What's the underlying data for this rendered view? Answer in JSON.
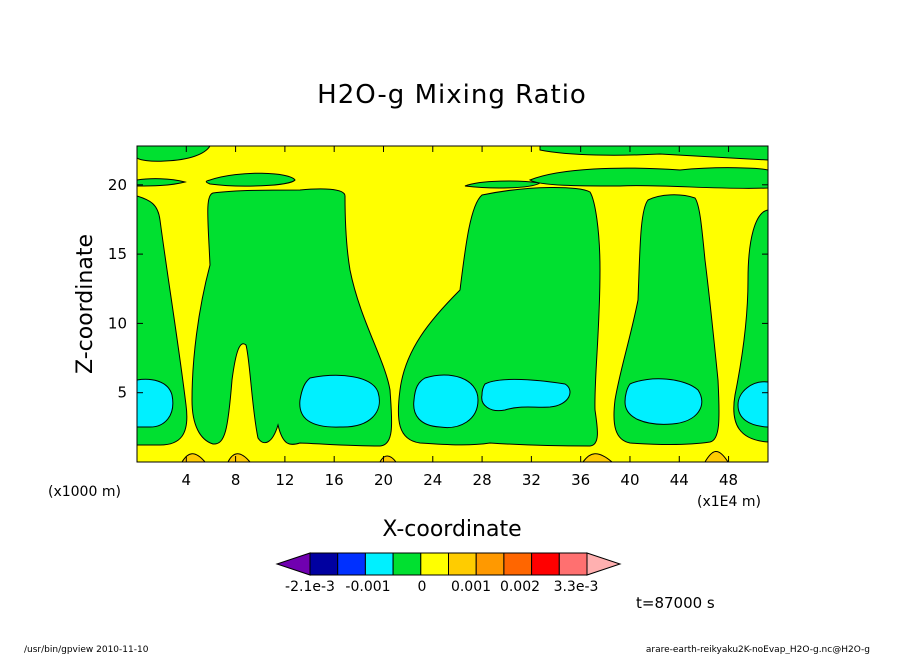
{
  "chart_data": {
    "type": "heatmap",
    "title": "H2O-g Mixing Ratio",
    "xlabel": "X-coordinate",
    "ylabel": "Z-coordinate",
    "x_unit_left": "(x1000 m)",
    "x_unit_right": "(x1E4 m)",
    "x_ticks": [
      "4",
      "8",
      "12",
      "16",
      "20",
      "24",
      "28",
      "32",
      "36",
      "40",
      "44",
      "48"
    ],
    "y_ticks": [
      "5",
      "10",
      "15",
      "20"
    ],
    "xlim": [
      0,
      51.2
    ],
    "ylim": [
      0,
      22.8
    ],
    "colorbar": {
      "levels": [
        -0.0021,
        -0.001,
        0,
        0.001,
        0.002,
        0.0033
      ],
      "labels": [
        "-2.1e-3",
        "-0.001",
        "0",
        "0.001",
        "0.002",
        "3.3e-3"
      ],
      "colors": [
        "#7000b0",
        "#0000a0",
        "#0030ff",
        "#00f0ff",
        "#00e030",
        "#ffff00",
        "#ffcc00",
        "#ff9900",
        "#ff6600",
        "#ff0000",
        "#ff7070",
        "#ffb0b0"
      ]
    },
    "regions": [
      {
        "level": "0 to 0.001",
        "color": "#ffff00",
        "description": "background"
      },
      {
        "level": "-0.001 to 0",
        "color": "#00e030",
        "x": [
          0.2,
          4.2
        ],
        "z": [
          1.3,
          18.8
        ]
      },
      {
        "level": "-0.001 to 0",
        "color": "#00e030",
        "x": [
          4.5,
          21.2
        ],
        "z": [
          1.2,
          19.5
        ]
      },
      {
        "level": "-0.001 to 0",
        "color": "#00e030",
        "x": [
          21.3,
          36.5
        ],
        "z": [
          0.8,
          19.6
        ]
      },
      {
        "level": "-0.001 to 0",
        "color": "#00e030",
        "x": [
          38.5,
          46.5
        ],
        "z": [
          0.8,
          19.0
        ]
      },
      {
        "level": "-0.001 to 0",
        "color": "#00e030",
        "x": [
          48.0,
          51.2
        ],
        "z": [
          1.3,
          17.0
        ]
      },
      {
        "level": "-0.001 to 0",
        "color": "#00e030",
        "x": [
          3.0,
          12.8
        ],
        "z": [
          19.9,
          20.6
        ]
      },
      {
        "level": "-0.001 to 0",
        "color": "#00e030",
        "x": [
          24.5,
          30.5
        ],
        "z": [
          20.2,
          20.7
        ]
      },
      {
        "level": "-0.001 to 0",
        "color": "#00e030",
        "x": [
          32.0,
          51.2
        ],
        "z": [
          20.1,
          21.3
        ]
      },
      {
        "level": "-0.001 to 0",
        "color": "#00e030",
        "x": [
          0.0,
          5.3
        ],
        "z": [
          21.6,
          22.7
        ]
      },
      {
        "level": "-0.002 to -0.001",
        "color": "#00f0ff",
        "x": [
          0.2,
          3.0
        ],
        "z": [
          2.8,
          5.9
        ]
      },
      {
        "level": "-0.002 to -0.001",
        "color": "#00f0ff",
        "x": [
          13.2,
          19.8
        ],
        "z": [
          2.6,
          6.3
        ]
      },
      {
        "level": "-0.002 to -0.001",
        "color": "#00f0ff",
        "x": [
          22.5,
          27.5
        ],
        "z": [
          2.6,
          6.3
        ]
      },
      {
        "level": "-0.002 to -0.001",
        "color": "#00f0ff",
        "x": [
          27.8,
          35.3
        ],
        "z": [
          3.5,
          6.0
        ]
      },
      {
        "level": "-0.002 to -0.001",
        "color": "#00f0ff",
        "x": [
          39.3,
          45.5
        ],
        "z": [
          2.8,
          6.0
        ]
      },
      {
        "level": "-0.002 to -0.001",
        "color": "#00f0ff",
        "x": [
          48.8,
          51.2
        ],
        "z": [
          2.8,
          6.0
        ]
      },
      {
        "level": "0.001 to 0.002",
        "color": "#ffcc00",
        "x": [
          3.5,
          5.8
        ],
        "z": [
          0.0,
          0.8
        ]
      },
      {
        "level": "0.001 to 0.002",
        "color": "#ffcc00",
        "x": [
          7.8,
          9.8
        ],
        "z": [
          0.0,
          0.9
        ]
      },
      {
        "level": "0.001 to 0.002",
        "color": "#ffcc00",
        "x": [
          19.8,
          21.3
        ],
        "z": [
          0.0,
          0.7
        ]
      },
      {
        "level": "0.001 to 0.002",
        "color": "#ffcc00",
        "x": [
          36.0,
          38.5
        ],
        "z": [
          0.0,
          0.7
        ]
      },
      {
        "level": "0.001 to 0.002",
        "color": "#ffcc00",
        "x": [
          45.5,
          47.5
        ],
        "z": [
          0.0,
          1.0
        ]
      }
    ]
  },
  "time_label": "t=87000 s",
  "footer": {
    "left": "/usr/bin/gpview  2010-11-10",
    "right": "arare-earth-reikyaku2K-noEvap_H2O-g.nc@H2O-g"
  }
}
